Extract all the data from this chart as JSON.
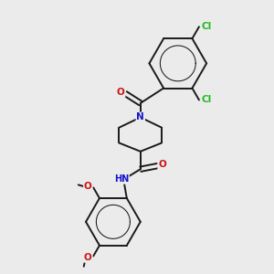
{
  "background_color": "#ebebeb",
  "bond_color": "#1a1a1a",
  "bond_width": 1.4,
  "atom_colors": {
    "N": "#1414cc",
    "O": "#cc1414",
    "Cl": "#22bb22",
    "H": "#7a9a9a"
  },
  "figsize": [
    3.0,
    3.0
  ],
  "dpi": 100,
  "xlim": [
    0,
    10
  ],
  "ylim": [
    0,
    10
  ]
}
